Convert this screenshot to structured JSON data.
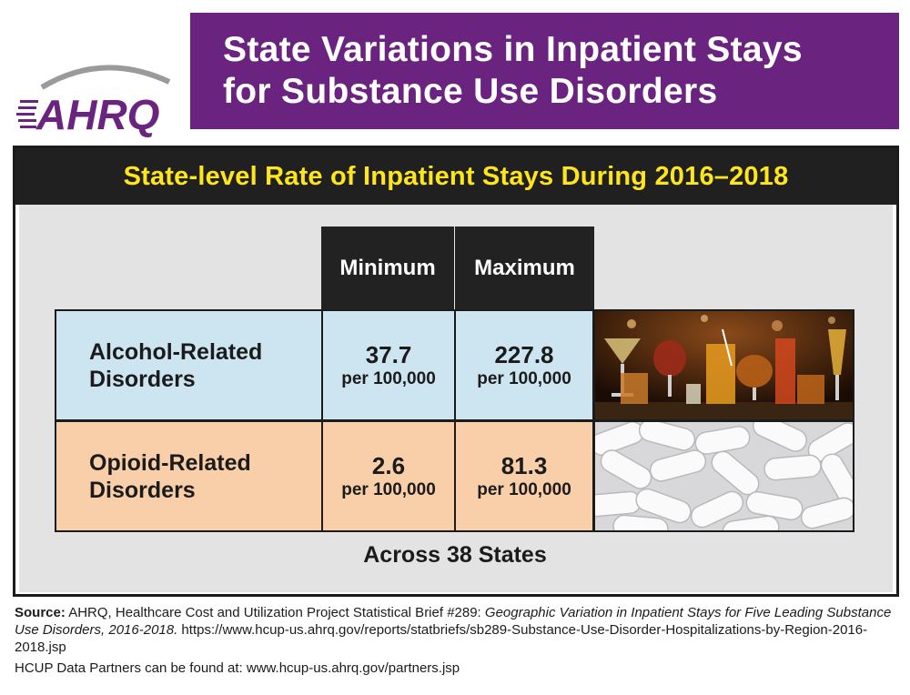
{
  "logo": {
    "text": "AHRQ"
  },
  "title": {
    "line1": "State Variations in Inpatient Stays",
    "line2": "for Substance Use Disorders"
  },
  "panel": {
    "header": "State-level Rate of Inpatient Stays During 2016–2018",
    "columns": [
      "Minimum",
      "Maximum"
    ],
    "rows": [
      {
        "label_line1": "Alcohol-Related",
        "label_line2": "Disorders",
        "min_value": "37.7",
        "min_unit": "per 100,000",
        "max_value": "227.8",
        "max_unit": "per 100,000",
        "image": "alcohol-drinks-photo"
      },
      {
        "label_line1": "Opioid-Related",
        "label_line2": "Disorders",
        "min_value": "2.6",
        "min_unit": "per 100,000",
        "max_value": "81.3",
        "max_unit": "per 100,000",
        "image": "white-pills-photo"
      }
    ],
    "footer": "Across 38 States"
  },
  "source": {
    "label": "Source:",
    "text1": " AHRQ, Healthcare Cost and Utilization Project Statistical Brief #289: ",
    "title_italic": "Geographic Variation in Inpatient Stays for Five Leading Substance Use Disorders, 2016-2018.",
    "url": " https://www.hcup-us.ahrq.gov/reports/statbriefs/sb289-Substance-Use-Disorder-Hospitalizations-by-Region-2016-2018.jsp"
  },
  "partners": "HCUP Data Partners can be found at: www.hcup-us.ahrq.gov/partners.jsp",
  "colors": {
    "banner": "#6b2380",
    "header_bg": "#202020",
    "header_text": "#ffe61a",
    "alcohol_row": "#cde5f1",
    "opioid_row": "#f8cfa8",
    "logo_purple": "#6b2380",
    "logo_swoosh": "#9a9a9a"
  }
}
